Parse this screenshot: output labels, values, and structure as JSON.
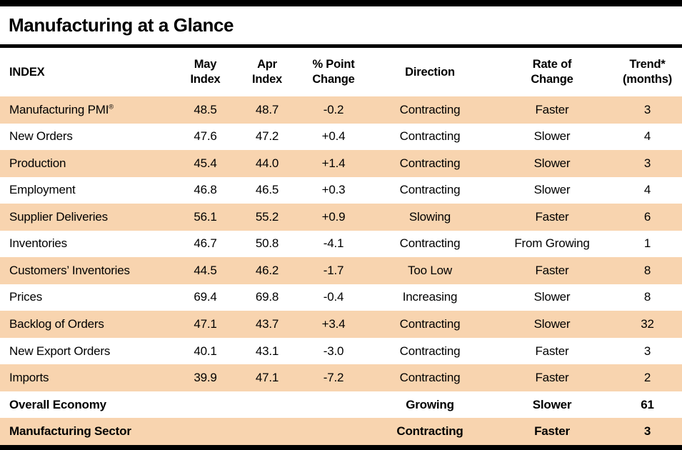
{
  "page": {
    "title": "Manufacturing at a Glance"
  },
  "colors": {
    "shaded_row": "#F8D4AF",
    "bar": "#000000",
    "text": "#000000"
  },
  "table": {
    "columns": [
      {
        "line1": "INDEX",
        "line2": ""
      },
      {
        "line1": "May",
        "line2": "Index"
      },
      {
        "line1": "Apr",
        "line2": "Index"
      },
      {
        "line1": "% Point",
        "line2": "Change"
      },
      {
        "line1": "Direction",
        "line2": ""
      },
      {
        "line1": "Rate of",
        "line2": "Change"
      },
      {
        "line1": "Trend*",
        "line2": "(months)"
      }
    ],
    "rows": [
      {
        "index": "Manufacturing PMI",
        "index_sup": "®",
        "may": "48.5",
        "apr": "48.7",
        "change": "-0.2",
        "direction": "Contracting",
        "rate": "Faster",
        "trend": "3",
        "shaded": true,
        "bold": false
      },
      {
        "index": "New Orders",
        "index_sup": "",
        "may": "47.6",
        "apr": "47.2",
        "change": "+0.4",
        "direction": "Contracting",
        "rate": "Slower",
        "trend": "4",
        "shaded": false,
        "bold": false
      },
      {
        "index": "Production",
        "index_sup": "",
        "may": "45.4",
        "apr": "44.0",
        "change": "+1.4",
        "direction": "Contracting",
        "rate": "Slower",
        "trend": "3",
        "shaded": true,
        "bold": false
      },
      {
        "index": "Employment",
        "index_sup": "",
        "may": "46.8",
        "apr": "46.5",
        "change": "+0.3",
        "direction": "Contracting",
        "rate": "Slower",
        "trend": "4",
        "shaded": false,
        "bold": false
      },
      {
        "index": "Supplier Deliveries",
        "index_sup": "",
        "may": "56.1",
        "apr": "55.2",
        "change": "+0.9",
        "direction": "Slowing",
        "rate": "Faster",
        "trend": "6",
        "shaded": true,
        "bold": false
      },
      {
        "index": "Inventories",
        "index_sup": "",
        "may": "46.7",
        "apr": "50.8",
        "change": "-4.1",
        "direction": "Contracting",
        "rate": "From Growing",
        "trend": "1",
        "shaded": false,
        "bold": false
      },
      {
        "index": "Customers’ Inventories",
        "index_sup": "",
        "may": "44.5",
        "apr": "46.2",
        "change": "-1.7",
        "direction": "Too Low",
        "rate": "Faster",
        "trend": "8",
        "shaded": true,
        "bold": false
      },
      {
        "index": "Prices",
        "index_sup": "",
        "may": "69.4",
        "apr": "69.8",
        "change": "-0.4",
        "direction": "Increasing",
        "rate": "Slower",
        "trend": "8",
        "shaded": false,
        "bold": false
      },
      {
        "index": "Backlog of Orders",
        "index_sup": "",
        "may": "47.1",
        "apr": "43.7",
        "change": "+3.4",
        "direction": "Contracting",
        "rate": "Slower",
        "trend": "32",
        "shaded": true,
        "bold": false
      },
      {
        "index": "New Export Orders",
        "index_sup": "",
        "may": "40.1",
        "apr": "43.1",
        "change": "-3.0",
        "direction": "Contracting",
        "rate": "Faster",
        "trend": "3",
        "shaded": false,
        "bold": false
      },
      {
        "index": "Imports",
        "index_sup": "",
        "may": "39.9",
        "apr": "47.1",
        "change": "-7.2",
        "direction": "Contracting",
        "rate": "Faster",
        "trend": "2",
        "shaded": true,
        "bold": false
      },
      {
        "index": "Overall Economy",
        "index_sup": "",
        "may": "",
        "apr": "",
        "change": "",
        "direction": "Growing",
        "rate": "Slower",
        "trend": "61",
        "shaded": false,
        "bold": true
      },
      {
        "index": "Manufacturing Sector",
        "index_sup": "",
        "may": "",
        "apr": "",
        "change": "",
        "direction": "Contracting",
        "rate": "Faster",
        "trend": "3",
        "shaded": true,
        "bold": true
      }
    ]
  }
}
